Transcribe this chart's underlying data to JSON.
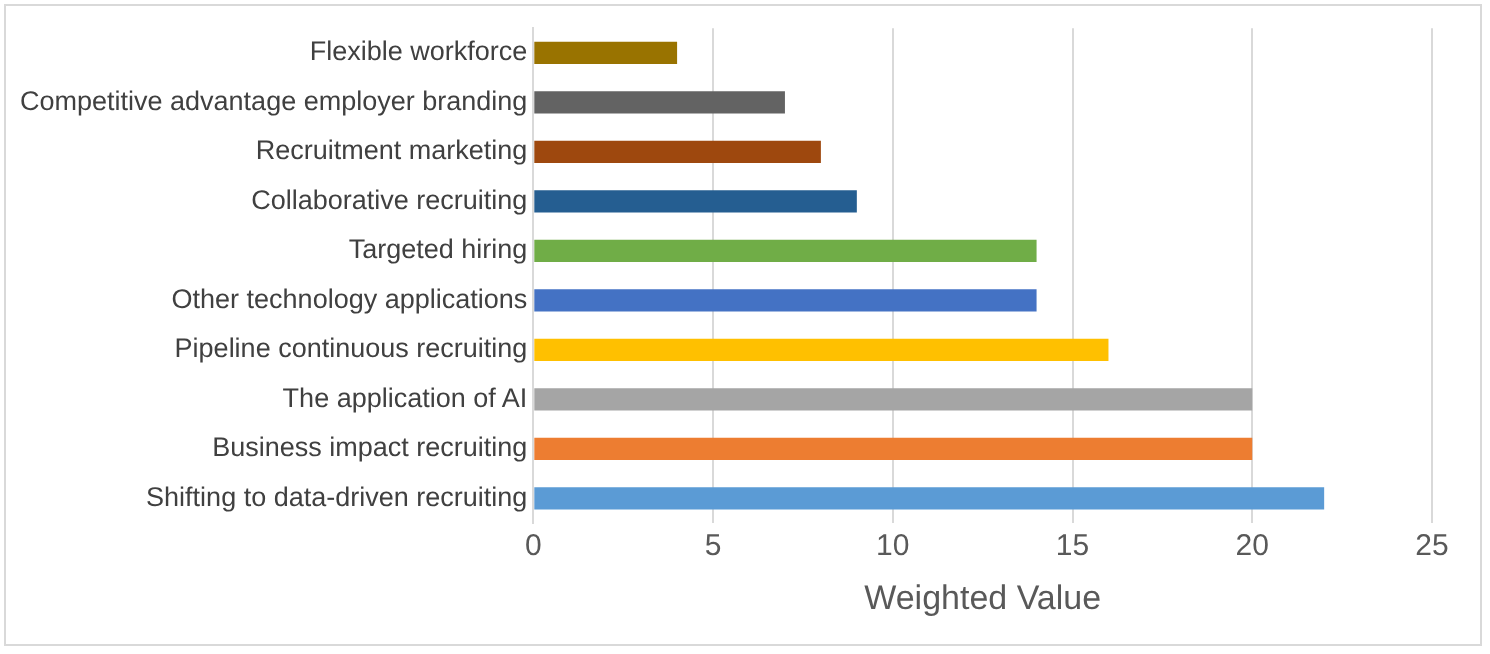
{
  "chart_data": {
    "type": "bar",
    "orientation": "horizontal",
    "xlabel": "Weighted Value",
    "categories": [
      "Flexible workforce",
      "Competitive advantage employer branding",
      "Recruitment marketing",
      "Collaborative recruiting",
      "Targeted hiring",
      "Other technology applications",
      "Pipeline continuous recruiting",
      "The application of AI",
      "Business impact recruiting",
      "Shifting to data-driven recruiting"
    ],
    "values": [
      4,
      7,
      8,
      9,
      14,
      14,
      16,
      20,
      20,
      22
    ],
    "colors": [
      "#997300",
      "#636363",
      "#9e480e",
      "#255e91",
      "#70ad47",
      "#4472c4",
      "#ffc000",
      "#a5a5a5",
      "#ed7d31",
      "#5b9bd5"
    ],
    "xlim": [
      0,
      25
    ],
    "xticks": [
      0,
      5,
      10,
      15,
      20,
      25
    ],
    "grid": "x",
    "legend": false
  }
}
